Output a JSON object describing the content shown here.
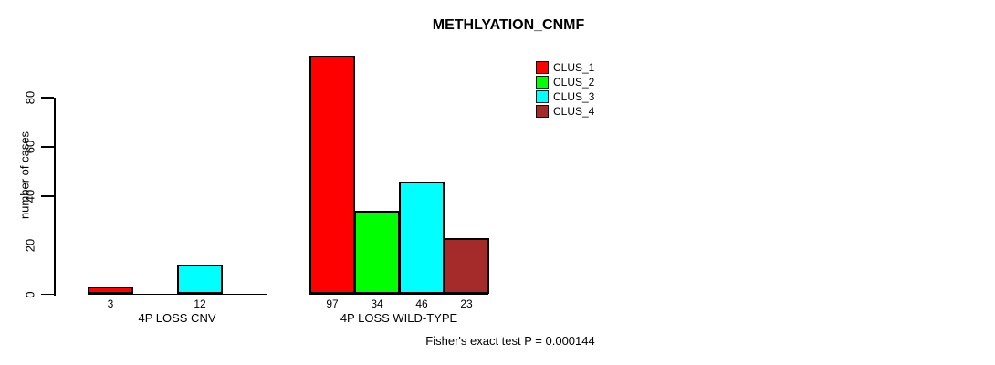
{
  "chart_data": {
    "type": "bar",
    "title": "METHLYATION_CNMF",
    "ylabel": "number of cases",
    "xlabel": "",
    "ylim": [
      0,
      80
    ],
    "yticks": [
      0,
      20,
      40,
      60,
      80
    ],
    "grid": false,
    "categories": [
      "4P LOSS CNV",
      "4P LOSS WILD-TYPE"
    ],
    "series": [
      {
        "name": "CLUS_1",
        "color": "#FF0000",
        "values": [
          3,
          97
        ]
      },
      {
        "name": "CLUS_2",
        "color": "#00FF00",
        "values": [
          0,
          34
        ]
      },
      {
        "name": "CLUS_3",
        "color": "#00FFFF",
        "values": [
          12,
          46
        ]
      },
      {
        "name": "CLUS_4",
        "color": "#A52A2A",
        "values": [
          0,
          23
        ]
      }
    ],
    "bar_value_labels_visible": "nonzero-only",
    "legend": {
      "position": "top-right",
      "entries": [
        "CLUS_1",
        "CLUS_2",
        "CLUS_3",
        "CLUS_4"
      ]
    },
    "annotation": "Fisher's exact test P = 0.000144"
  }
}
